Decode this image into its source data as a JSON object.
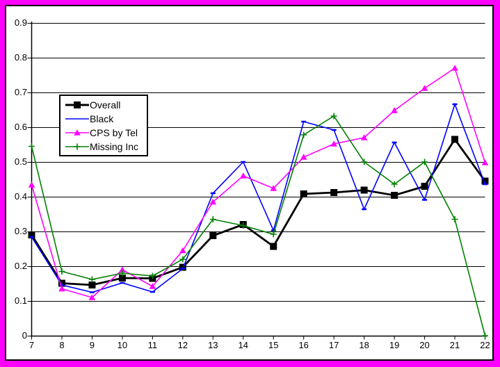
{
  "window": {
    "outer_border_color": "#FF00FF",
    "inner_frame_color": "#000000",
    "background": "#FFFFFF"
  },
  "chart_data": {
    "type": "line",
    "title": "",
    "xlabel": "",
    "ylabel": "",
    "categories": [
      7,
      8,
      9,
      10,
      11,
      12,
      13,
      14,
      15,
      16,
      17,
      18,
      19,
      20,
      21,
      22
    ],
    "ylim": [
      0,
      0.9
    ],
    "grid": true,
    "legend_position": "upper-left-inside",
    "series": [
      {
        "name": "Overall",
        "color": "#000000",
        "marker": "square",
        "line_width": 2.8,
        "values": [
          0.29,
          0.151,
          0.146,
          0.166,
          0.165,
          0.197,
          0.288,
          0.32,
          0.257,
          0.408,
          0.412,
          0.419,
          0.404,
          0.43,
          0.565,
          0.445
        ]
      },
      {
        "name": "Black",
        "color": "#0000FF",
        "marker": "dash",
        "line_width": 1.6,
        "values": [
          0.284,
          0.146,
          0.125,
          0.152,
          0.126,
          0.193,
          0.41,
          0.5,
          0.303,
          0.616,
          0.592,
          0.364,
          0.556,
          0.391,
          0.666,
          0.436
        ]
      },
      {
        "name": "CPS by Tel",
        "color": "#FF00FF",
        "marker": "triangle",
        "line_width": 1.6,
        "values": [
          0.434,
          0.135,
          0.11,
          0.19,
          0.142,
          0.245,
          0.385,
          0.46,
          0.424,
          0.514,
          0.552,
          0.57,
          0.648,
          0.712,
          0.77,
          0.498
        ]
      },
      {
        "name": "Missing Inc",
        "color": "#008000",
        "marker": "plus",
        "line_width": 1.6,
        "values": [
          0.545,
          0.185,
          0.162,
          0.18,
          0.172,
          0.22,
          0.335,
          0.317,
          0.292,
          0.578,
          0.632,
          0.5,
          0.436,
          0.5,
          0.335,
          0
        ]
      }
    ],
    "y_tick_labels": [
      "0.9",
      "0.8",
      "0.7",
      "0.6",
      "0.5",
      "0.4",
      "0.3",
      "0.2",
      "0.1",
      "0"
    ],
    "x_tick_labels": [
      "7",
      "8",
      "9",
      "10",
      "11",
      "12",
      "13",
      "14",
      "15",
      "16",
      "17",
      "18",
      "19",
      "20",
      "21",
      "22"
    ]
  },
  "legend": {
    "items": [
      "Overall",
      "Black",
      "CPS by Tel",
      "Missing Inc"
    ]
  }
}
